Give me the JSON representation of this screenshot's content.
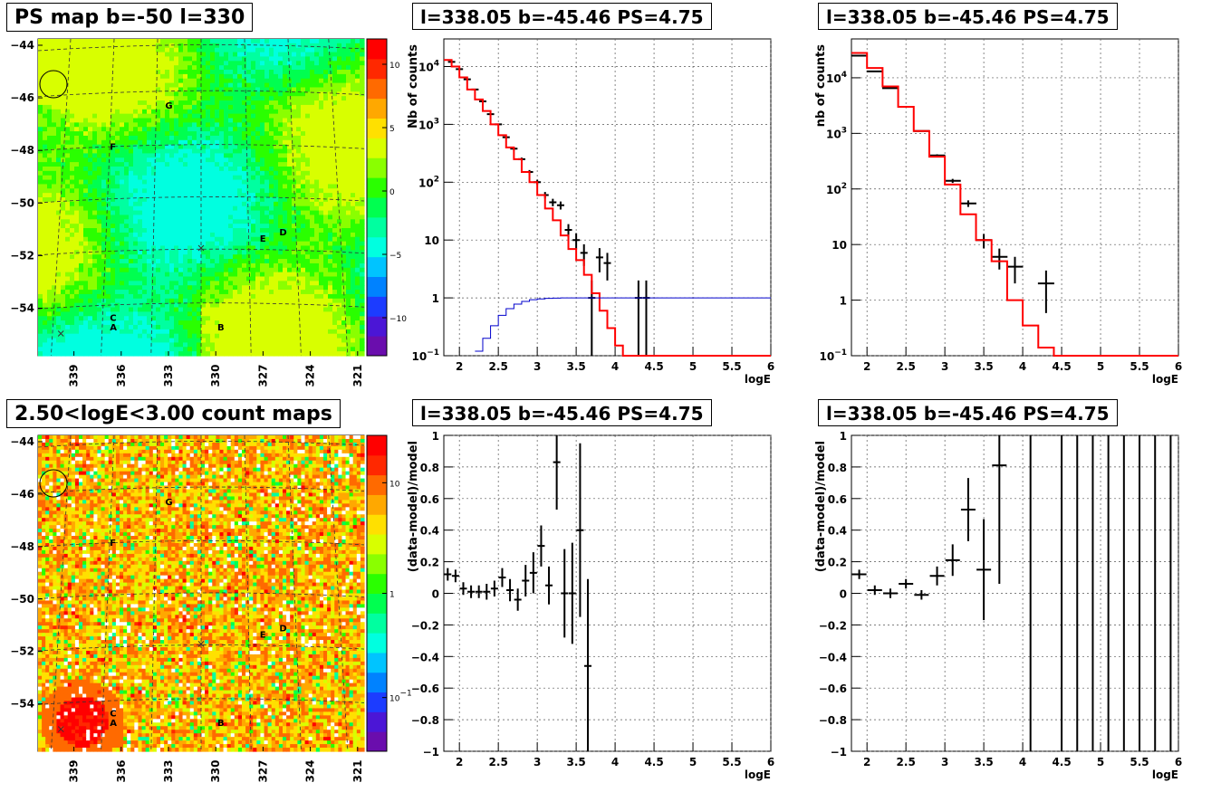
{
  "panels": {
    "map1_title": "PS map b=-50 l=330",
    "map2_title": "2.50<logE<3.00 count maps",
    "spec1_title": "l=338.05 b=-45.46 PS=4.75",
    "spec2_title": "l=338.05 b=-45.46 PS=4.75",
    "res1_title": "l=338.05 b=-45.46 PS=4.75",
    "res2_title": "l=338.05 b=-45.46 PS=4.75"
  },
  "colors": {
    "data": "#000000",
    "model": "#ff0000",
    "acceptance": "#0000cc",
    "grid": "#555555"
  },
  "chart_data": [
    {
      "type": "heatmap",
      "id": "map1",
      "title": "PS map b=-50 l=330",
      "y_ticks": [
        "-44",
        "-46",
        "-48",
        "-50",
        "-52",
        "-54"
      ],
      "x_ticks": [
        "339",
        "336",
        "333",
        "330",
        "327",
        "324",
        "321"
      ],
      "colorbar_ticks": [
        "10",
        "5",
        "0",
        "-5",
        "-10"
      ],
      "zlim": [
        -12,
        12
      ],
      "sources": [
        "A",
        "B",
        "C",
        "D",
        "E",
        "F",
        "G"
      ]
    },
    {
      "type": "line",
      "id": "spec1",
      "title": "l=338.05 b=-45.46 PS=4.75",
      "xlabel": "logE",
      "ylabel": "Nb of counts",
      "xlim": [
        1.8,
        6
      ],
      "ylim": [
        0.1,
        30000
      ],
      "yscale": "log",
      "x_ticks": [
        "2",
        "2.5",
        "3",
        "3.5",
        "4",
        "4.5",
        "5",
        "5.5",
        "6"
      ],
      "y_ticks": [
        "10^-1",
        "1",
        "10",
        "10^2",
        "10^3",
        "10^4"
      ],
      "series": [
        {
          "kind": "points",
          "x": [
            1.9,
            2.0,
            2.1,
            2.2,
            2.3,
            2.4,
            2.5,
            2.6,
            2.7,
            2.8,
            2.9,
            3.0,
            3.1,
            3.2,
            3.3,
            3.4,
            3.5,
            3.6,
            3.7,
            3.8,
            3.9,
            4.0,
            4.1,
            4.2,
            4.3,
            4.4
          ],
          "y": [
            12000,
            9000,
            6000,
            4000,
            2500,
            1500,
            1000,
            600,
            380,
            250,
            150,
            100,
            60,
            45,
            40,
            15,
            10,
            6,
            1,
            5,
            4,
            0,
            0,
            0,
            1,
            1
          ]
        },
        {
          "kind": "model-step",
          "x": [
            1.8,
            1.9,
            2.0,
            2.1,
            2.2,
            2.3,
            2.4,
            2.5,
            2.6,
            2.7,
            2.8,
            2.9,
            3.0,
            3.1,
            3.2,
            3.3,
            3.4,
            3.5,
            3.6,
            3.7,
            3.8,
            3.9,
            4.0,
            4.1,
            4.2,
            6.0
          ],
          "y": [
            13000,
            10000,
            6500,
            4000,
            2700,
            1700,
            1000,
            650,
            400,
            250,
            150,
            100,
            60,
            35,
            22,
            12,
            7,
            4.5,
            2.5,
            1.2,
            0.6,
            0.3,
            0.15,
            0.1,
            0.1,
            0.1
          ]
        },
        {
          "kind": "acceptance",
          "x": [
            2.2,
            2.3,
            2.4,
            2.5,
            2.6,
            2.7,
            2.8,
            2.9,
            3.0,
            3.1,
            3.2,
            3.3,
            3.4,
            3.5,
            6.0
          ],
          "y": [
            0.12,
            0.2,
            0.33,
            0.5,
            0.65,
            0.78,
            0.87,
            0.93,
            0.96,
            0.98,
            0.99,
            1,
            1,
            1,
            1
          ]
        }
      ]
    },
    {
      "type": "line",
      "id": "spec2",
      "title": "l=338.05 b=-45.46 PS=4.75",
      "xlabel": "logE",
      "ylabel": "nb of counts",
      "xlim": [
        1.8,
        6
      ],
      "ylim": [
        0.1,
        50000
      ],
      "yscale": "log",
      "x_ticks": [
        "2",
        "2.5",
        "3",
        "3.5",
        "4",
        "4.5",
        "5",
        "5.5",
        "6"
      ],
      "y_ticks": [
        "10^-1",
        "1",
        "10",
        "10^2",
        "10^3",
        "10^4"
      ],
      "series": [
        {
          "kind": "points",
          "x": [
            1.9,
            2.1,
            2.3,
            2.5,
            2.7,
            2.9,
            3.1,
            3.3,
            3.5,
            3.7,
            3.9,
            4.1,
            4.3
          ],
          "y": [
            25000,
            13000,
            6500,
            3000,
            1100,
            400,
            140,
            55,
            12,
            6,
            4,
            0,
            2
          ]
        },
        {
          "kind": "model-step",
          "x": [
            1.8,
            2.0,
            2.2,
            2.4,
            2.6,
            2.8,
            3.0,
            3.2,
            3.4,
            3.6,
            3.8,
            4.0,
            4.2,
            4.4,
            6.0
          ],
          "y": [
            28000,
            15000,
            7000,
            3000,
            1100,
            380,
            120,
            35,
            12,
            5,
            1,
            0.35,
            0.14,
            0.1,
            0.1
          ]
        }
      ]
    },
    {
      "type": "heatmap",
      "id": "map2",
      "title": "2.50<logE<3.00 count maps",
      "y_ticks": [
        "-44",
        "-46",
        "-48",
        "-50",
        "-52",
        "-54"
      ],
      "x_ticks": [
        "339",
        "336",
        "333",
        "330",
        "327",
        "324",
        "321"
      ],
      "colorbar_ticks": [
        "10",
        "1",
        "10^-1"
      ],
      "zscale": "log",
      "sources": [
        "A",
        "B",
        "C",
        "D",
        "E",
        "F",
        "G"
      ]
    },
    {
      "type": "scatter",
      "id": "res1",
      "title": "l=338.05 b=-45.46 PS=4.75",
      "xlabel": "logE",
      "ylabel": "(data-model)/model",
      "xlim": [
        1.8,
        6
      ],
      "ylim": [
        -1,
        1
      ],
      "x_ticks": [
        "2",
        "2.5",
        "3",
        "3.5",
        "4",
        "4.5",
        "5",
        "5.5",
        "6"
      ],
      "y_ticks": [
        "-1",
        "-0.8",
        "-0.6",
        "-0.4",
        "-0.2",
        "0",
        "0.2",
        "0.4",
        "0.6",
        "0.8",
        "1"
      ],
      "x": [
        1.85,
        1.95,
        2.05,
        2.15,
        2.25,
        2.35,
        2.45,
        2.55,
        2.65,
        2.75,
        2.85,
        2.95,
        3.05,
        3.15,
        3.25,
        3.35,
        3.45,
        3.55,
        3.65
      ],
      "y": [
        0.12,
        0.11,
        0.03,
        0.01,
        0.01,
        0.01,
        0.03,
        0.1,
        0.02,
        -0.04,
        0.08,
        0.13,
        0.3,
        0.05,
        0.83,
        0.0,
        0.0,
        0.4,
        -0.46
      ],
      "err": [
        0.04,
        0.04,
        0.04,
        0.04,
        0.04,
        0.05,
        0.05,
        0.06,
        0.07,
        0.07,
        0.1,
        0.13,
        0.13,
        0.12,
        0.3,
        0.28,
        0.32,
        0.55,
        0.55
      ]
    },
    {
      "type": "scatter",
      "id": "res2",
      "title": "l=338.05 b=-45.46 PS=4.75",
      "xlabel": "logE",
      "ylabel": "(data-model)/model",
      "xlim": [
        1.8,
        6
      ],
      "ylim": [
        -1,
        1
      ],
      "x_ticks": [
        "2",
        "2.5",
        "3",
        "3.5",
        "4",
        "4.5",
        "5",
        "5.5",
        "6"
      ],
      "y_ticks": [
        "-1",
        "-0.8",
        "-0.6",
        "-0.4",
        "-0.2",
        "0",
        "0.2",
        "0.4",
        "0.6",
        "0.8",
        "1"
      ],
      "x": [
        1.9,
        2.1,
        2.3,
        2.5,
        2.7,
        2.9,
        3.1,
        3.3,
        3.5,
        3.7
      ],
      "y": [
        0.12,
        0.02,
        0.0,
        0.06,
        -0.01,
        0.11,
        0.21,
        0.53,
        0.15,
        0.81
      ],
      "err": [
        0.03,
        0.03,
        0.03,
        0.03,
        0.03,
        0.06,
        0.1,
        0.2,
        0.32,
        0.75
      ],
      "full_bars_x": [
        4.1,
        4.5,
        4.7,
        4.9,
        5.1,
        5.3,
        5.5,
        5.7,
        5.9
      ]
    }
  ]
}
